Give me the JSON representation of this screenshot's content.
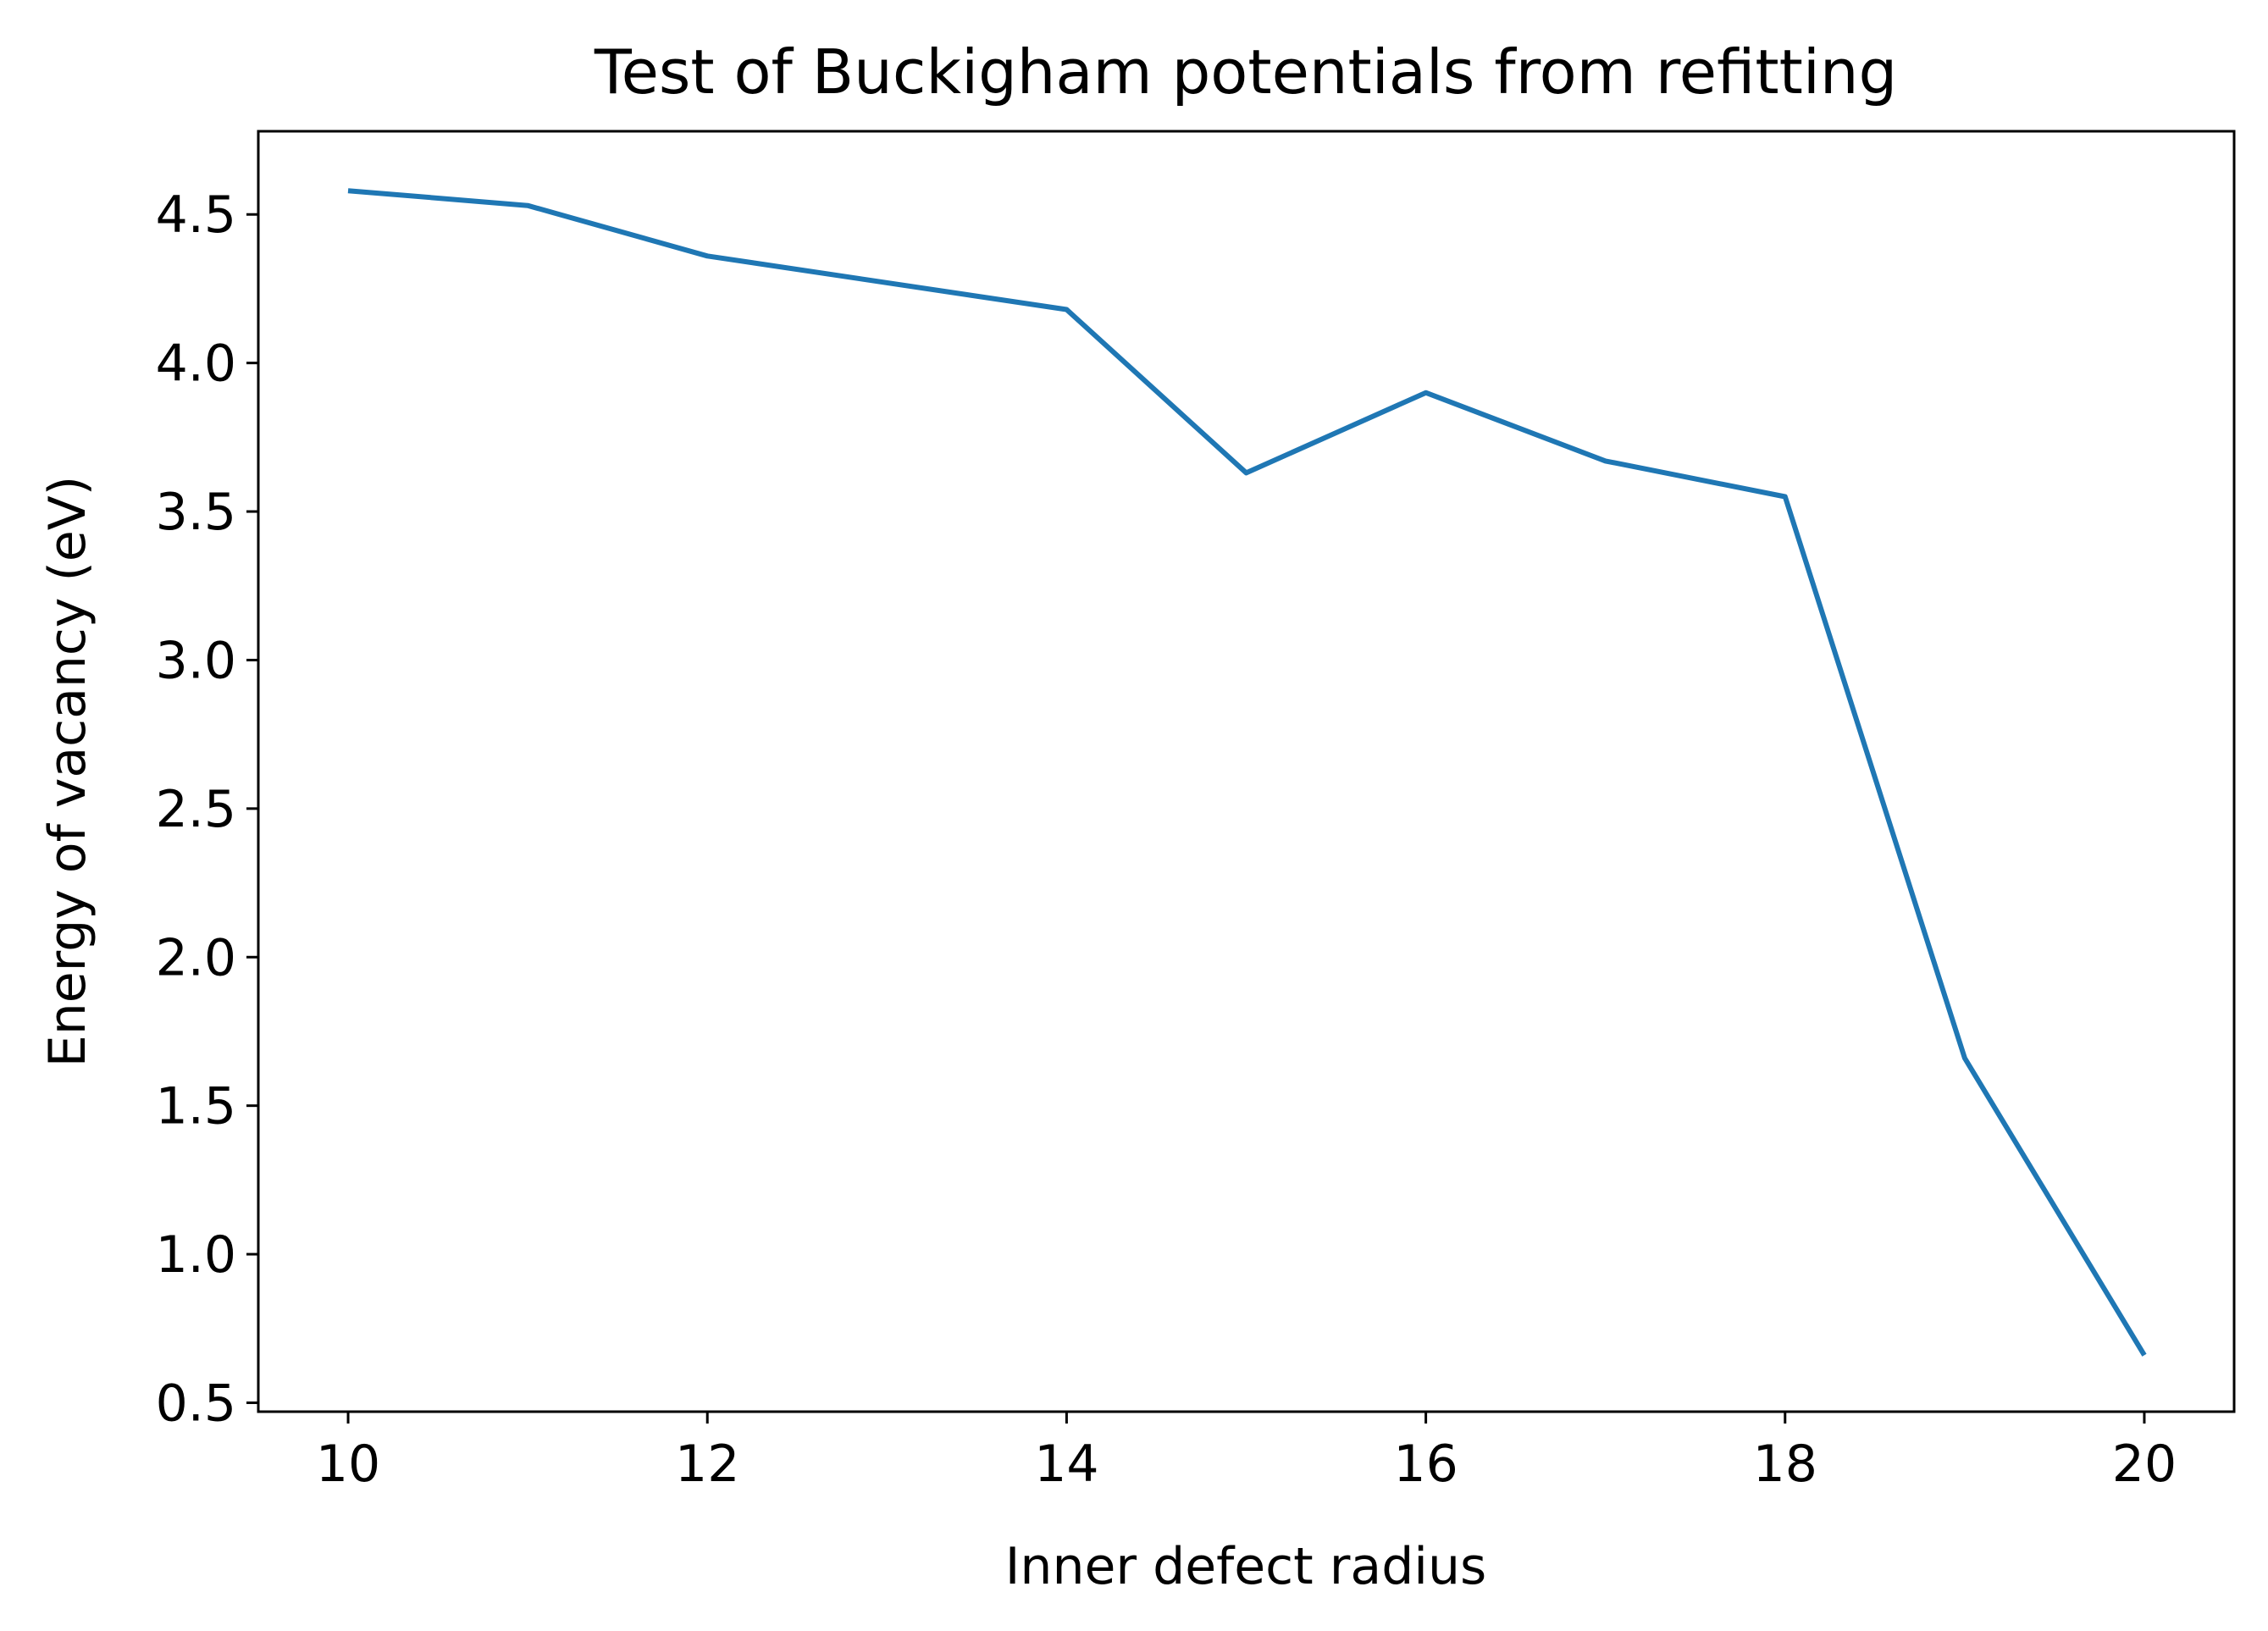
{
  "chart_data": {
    "type": "line",
    "title": "Test of Buckigham potentials from refitting",
    "xlabel": "Inner defect radius",
    "ylabel": "Energy of vacancy (eV)",
    "xlim": [
      9.5,
      20.5
    ],
    "ylim": [
      0.47,
      4.78
    ],
    "x_ticks": [
      10,
      12,
      14,
      16,
      18,
      20
    ],
    "x_tick_labels": [
      "10",
      "12",
      "14",
      "16",
      "18",
      "20"
    ],
    "y_ticks": [
      0.5,
      1.0,
      1.5,
      2.0,
      2.5,
      3.0,
      3.5,
      4.0,
      4.5
    ],
    "y_tick_labels": [
      "0.5",
      "1.0",
      "1.5",
      "2.0",
      "2.5",
      "3.0",
      "3.5",
      "4.0",
      "4.5"
    ],
    "grid": false,
    "series": [
      {
        "color": "#1f77b4",
        "x": [
          10,
          11,
          12,
          14,
          15,
          16,
          17,
          18,
          19,
          20
        ],
        "y": [
          4.58,
          4.53,
          4.36,
          4.18,
          3.63,
          3.9,
          3.67,
          3.55,
          1.66,
          0.66
        ]
      }
    ]
  }
}
